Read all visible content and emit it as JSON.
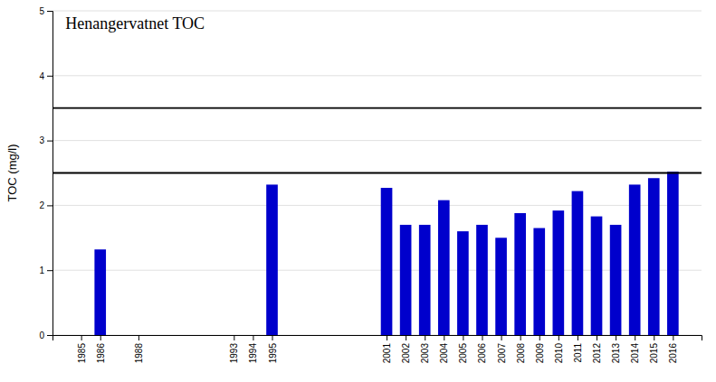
{
  "chart_data": {
    "type": "bar",
    "title": "Henangervatnet TOC",
    "ylabel": "TOC (mg/l)",
    "x": [
      1985,
      1986,
      1988,
      1993,
      1994,
      1995,
      2001,
      2002,
      2003,
      2004,
      2005,
      2006,
      2007,
      2008,
      2009,
      2010,
      2011,
      2012,
      2013,
      2014,
      2015,
      2016
    ],
    "values": [
      0,
      1.32,
      0,
      0,
      0,
      2.32,
      2.27,
      1.7,
      1.7,
      2.08,
      1.6,
      1.7,
      1.5,
      1.88,
      1.65,
      1.92,
      2.22,
      1.83,
      1.7,
      2.32,
      2.42,
      2.52
    ],
    "color": "#0000cc",
    "xlim": [
      1983.5,
      2017.5
    ],
    "xticks": [
      1985,
      1986,
      1988,
      1993,
      1994,
      1995,
      2001,
      2002,
      2003,
      2004,
      2005,
      2006,
      2007,
      2008,
      2009,
      2010,
      2011,
      2012,
      2013,
      2014,
      2015,
      2016
    ],
    "ylim": [
      0,
      5
    ],
    "yticks": [
      0,
      1,
      2,
      3,
      4,
      5
    ],
    "hlines": [
      2.5,
      3.5
    ],
    "grid": true
  }
}
